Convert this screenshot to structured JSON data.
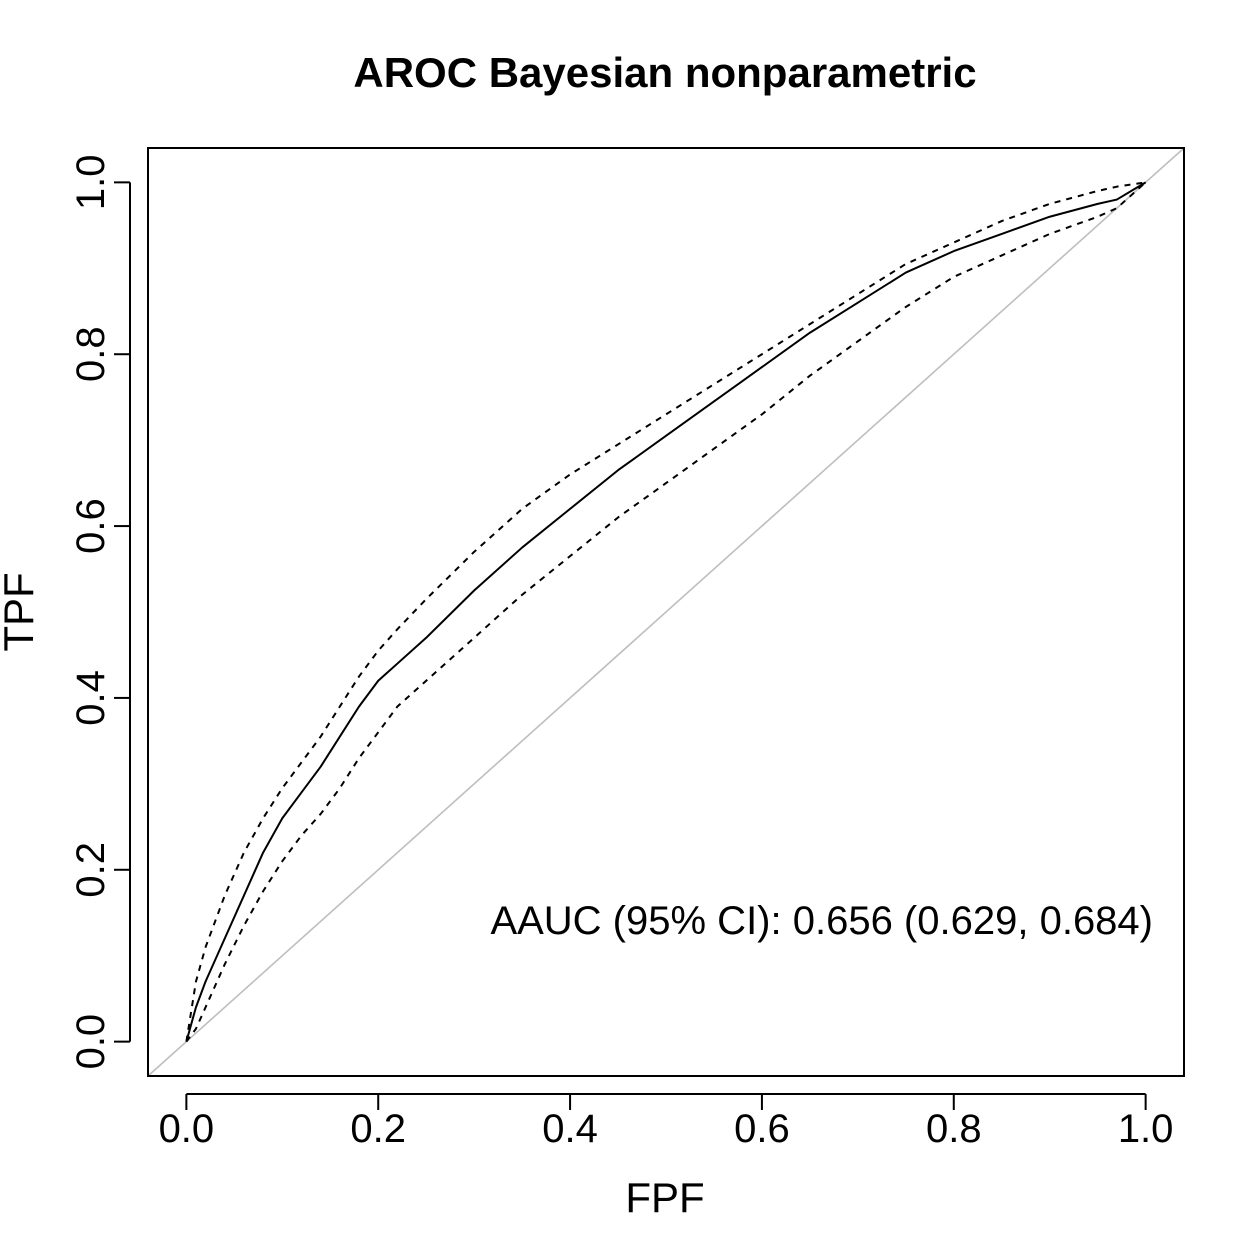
{
  "chart_data": {
    "type": "line",
    "title": "AROC Bayesian nonparametric",
    "xlabel": "FPF",
    "ylabel": "TPF",
    "xlim": [
      -0.04,
      1.04
    ],
    "ylim": [
      -0.04,
      1.04
    ],
    "xticks": [
      "0.0",
      "0.2",
      "0.4",
      "0.6",
      "0.8",
      "1.0"
    ],
    "yticks": [
      "0.0",
      "0.2",
      "0.4",
      "0.6",
      "0.8",
      "1.0"
    ],
    "grid": false,
    "legend": "none",
    "annotation": "AAUC (95% CI): 0.656 (0.629, 0.684)",
    "colors": {
      "curve": "#000000",
      "ci": "#000000",
      "diagonal": "#bebebe",
      "frame": "#000000"
    },
    "series": [
      {
        "role": "estimate",
        "style": "solid",
        "x": [
          0.0,
          0.01,
          0.02,
          0.04,
          0.06,
          0.08,
          0.1,
          0.12,
          0.14,
          0.16,
          0.18,
          0.2,
          0.22,
          0.25,
          0.3,
          0.35,
          0.4,
          0.45,
          0.5,
          0.55,
          0.6,
          0.65,
          0.7,
          0.75,
          0.8,
          0.85,
          0.9,
          0.95,
          0.97,
          1.0
        ],
        "y": [
          0.0,
          0.04,
          0.07,
          0.12,
          0.17,
          0.22,
          0.26,
          0.29,
          0.32,
          0.355,
          0.39,
          0.42,
          0.44,
          0.47,
          0.525,
          0.575,
          0.62,
          0.665,
          0.705,
          0.745,
          0.785,
          0.825,
          0.86,
          0.895,
          0.92,
          0.94,
          0.96,
          0.975,
          0.98,
          1.0
        ]
      },
      {
        "role": "ci-upper",
        "style": "dashed",
        "x": [
          0.0,
          0.01,
          0.02,
          0.04,
          0.06,
          0.08,
          0.1,
          0.12,
          0.14,
          0.16,
          0.18,
          0.2,
          0.22,
          0.25,
          0.3,
          0.35,
          0.4,
          0.45,
          0.5,
          0.55,
          0.6,
          0.65,
          0.7,
          0.75,
          0.8,
          0.85,
          0.9,
          0.95,
          0.97,
          1.0
        ],
        "y": [
          0.0,
          0.07,
          0.11,
          0.17,
          0.22,
          0.26,
          0.295,
          0.325,
          0.355,
          0.39,
          0.425,
          0.455,
          0.48,
          0.515,
          0.57,
          0.62,
          0.66,
          0.695,
          0.73,
          0.765,
          0.8,
          0.835,
          0.87,
          0.905,
          0.93,
          0.955,
          0.975,
          0.99,
          0.995,
          1.0
        ]
      },
      {
        "role": "ci-lower",
        "style": "dashed",
        "x": [
          0.0,
          0.01,
          0.02,
          0.04,
          0.06,
          0.08,
          0.1,
          0.12,
          0.14,
          0.16,
          0.18,
          0.2,
          0.22,
          0.25,
          0.3,
          0.35,
          0.4,
          0.45,
          0.5,
          0.55,
          0.6,
          0.65,
          0.7,
          0.75,
          0.8,
          0.85,
          0.9,
          0.95,
          0.97,
          1.0
        ],
        "y": [
          0.0,
          0.015,
          0.04,
          0.09,
          0.135,
          0.175,
          0.21,
          0.24,
          0.265,
          0.295,
          0.33,
          0.36,
          0.39,
          0.42,
          0.47,
          0.52,
          0.565,
          0.61,
          0.65,
          0.69,
          0.73,
          0.775,
          0.815,
          0.855,
          0.89,
          0.915,
          0.94,
          0.96,
          0.97,
          1.0
        ]
      },
      {
        "role": "chance-diagonal",
        "style": "solid",
        "x": [
          -0.04,
          1.04
        ],
        "y": [
          -0.04,
          1.04
        ]
      }
    ]
  }
}
